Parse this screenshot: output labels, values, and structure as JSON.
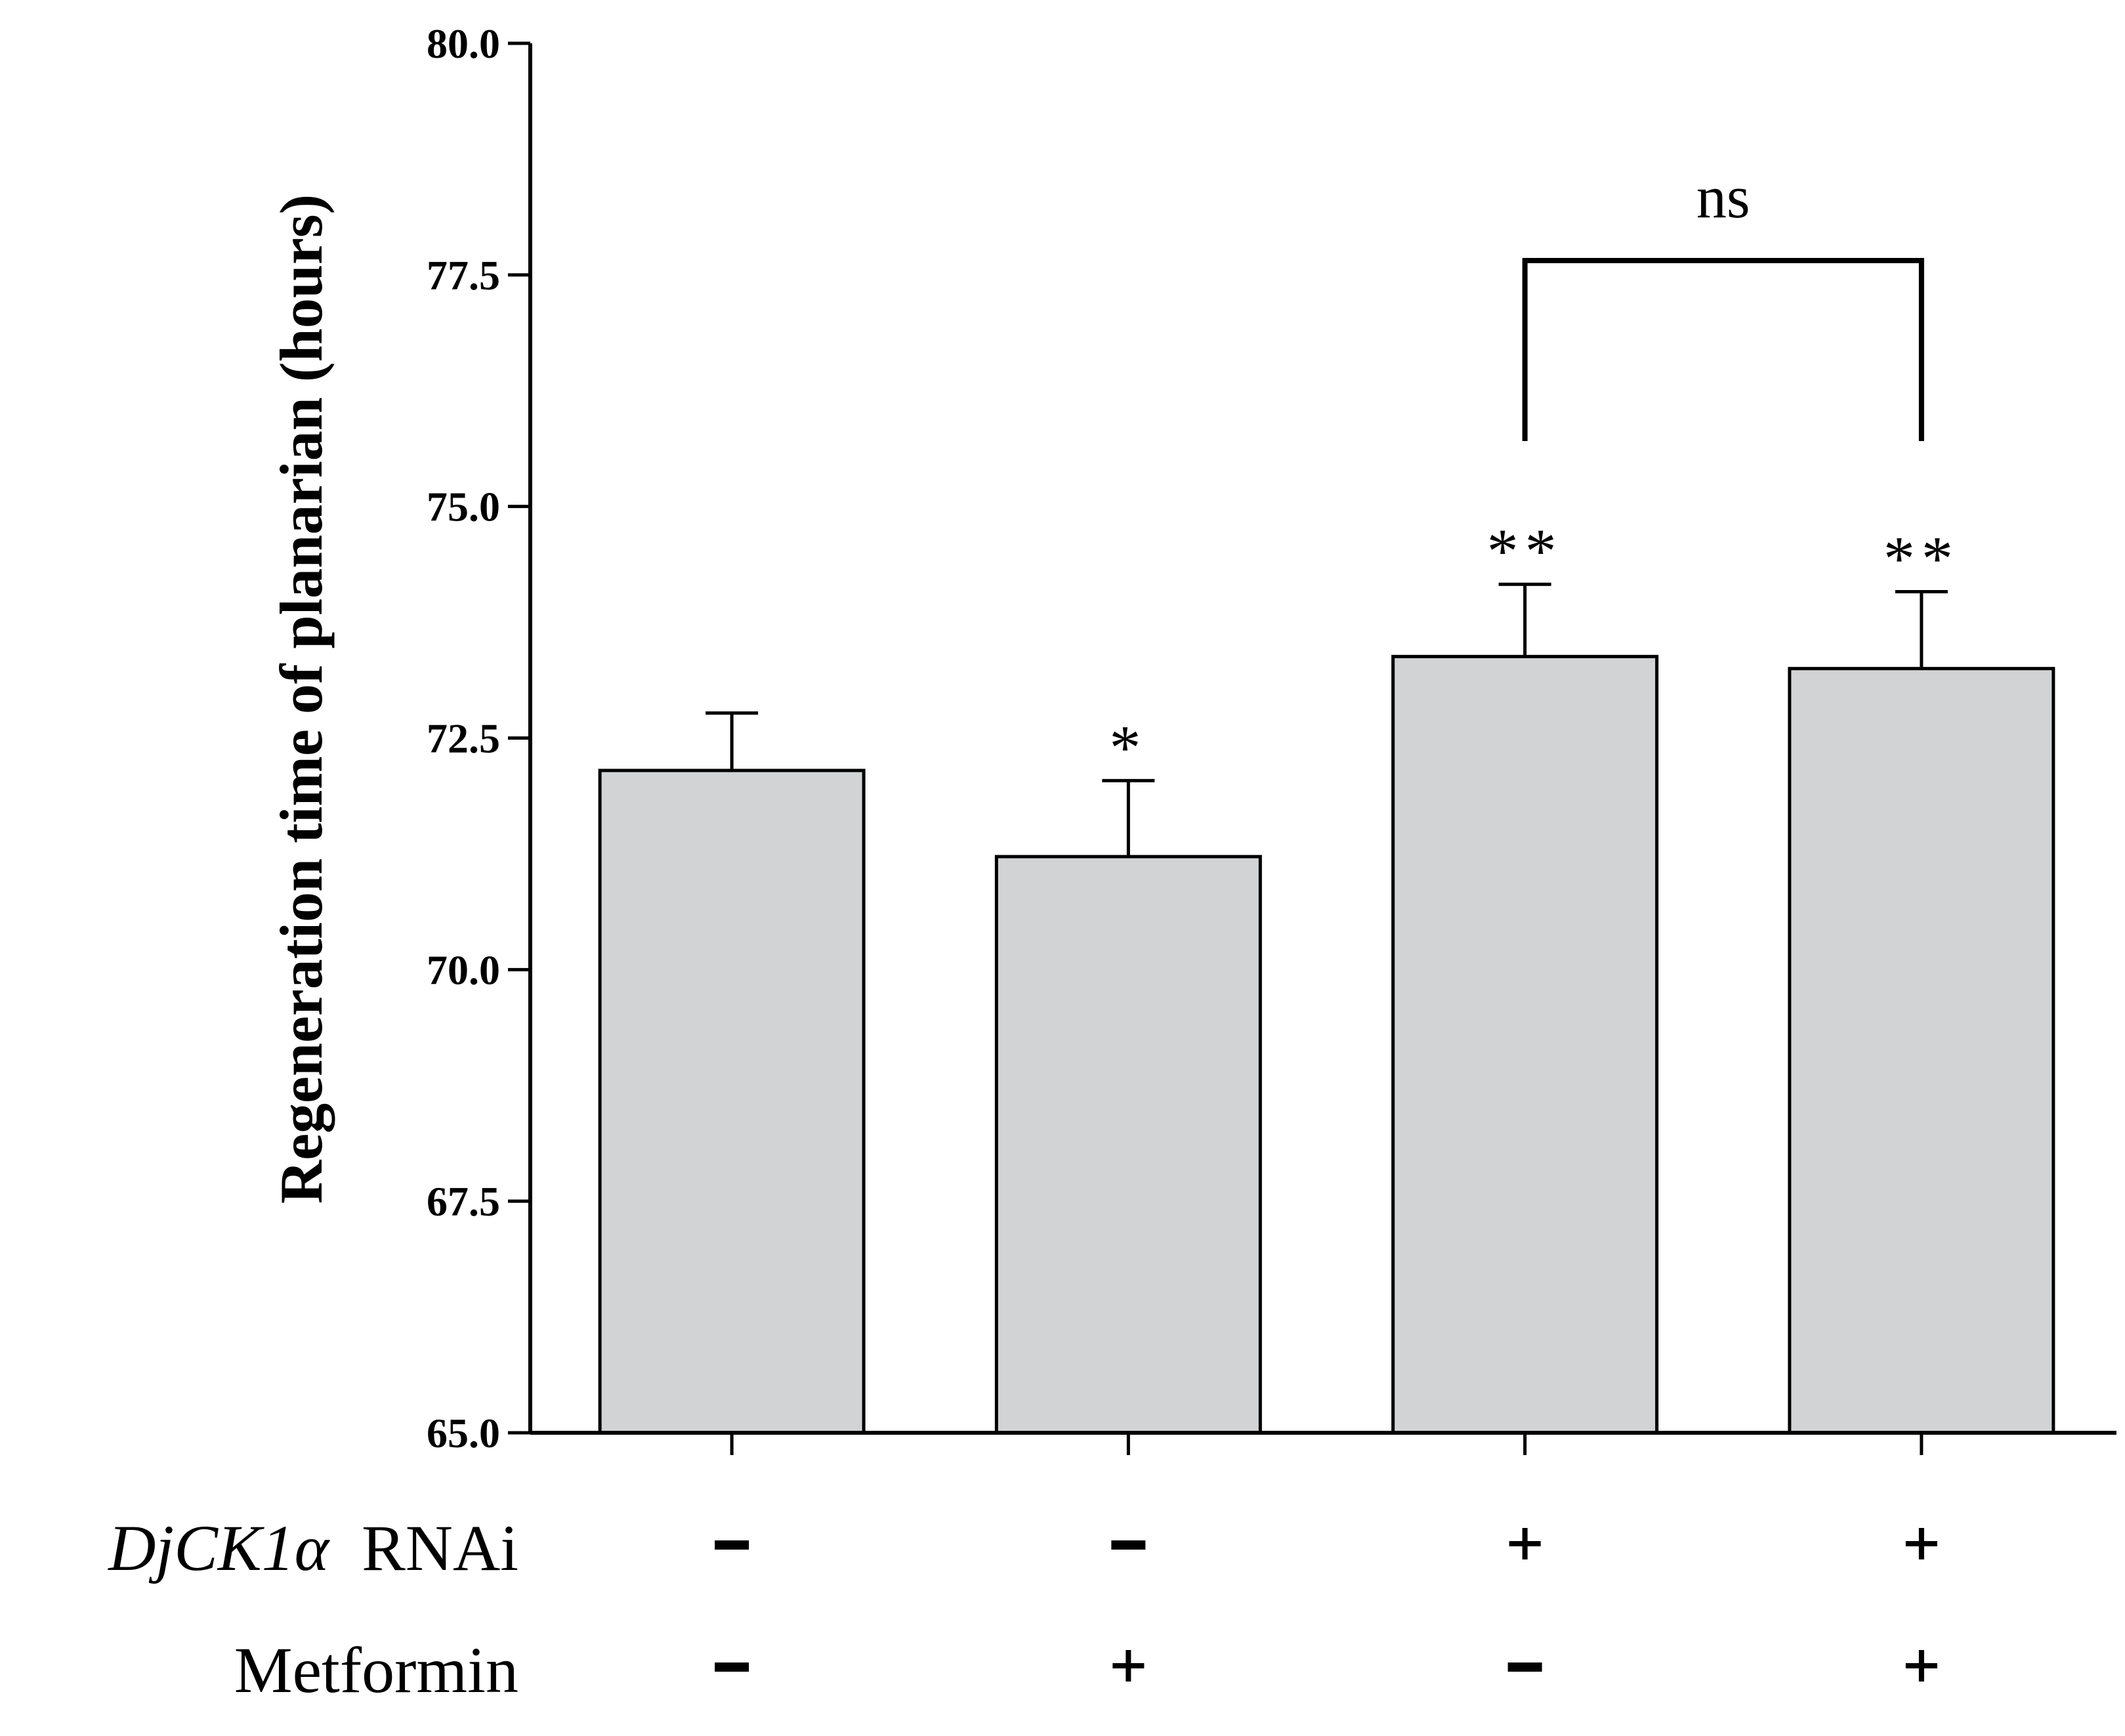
{
  "chart_data": {
    "type": "bar",
    "title": "",
    "xlabel": "",
    "ylabel": "Regeneration time of planarian (hours)",
    "ylim": [
      65.0,
      80.0
    ],
    "yticks": [
      "65.0",
      "67.5",
      "70.0",
      "72.5",
      "75.0",
      "77.5",
      "80.0"
    ],
    "bar_color": "#d1d3d4",
    "series": [
      {
        "name": "Regeneration time",
        "values": [
          72.15,
          71.22,
          73.38,
          73.25
        ],
        "errors": [
          0.62,
          0.82,
          0.78,
          0.83
        ],
        "significance": [
          "",
          "*",
          "**",
          "**"
        ]
      }
    ],
    "comparison": {
      "from": 2,
      "to": 3,
      "label": "ns"
    },
    "conditions": [
      {
        "name_italic": "DjCK1α",
        "name_plain": "RNAi",
        "signs": [
          "-",
          "-",
          "+",
          "+"
        ]
      },
      {
        "name_italic": "",
        "name_plain": "Metformin",
        "signs": [
          "-",
          "+",
          "-",
          "+"
        ]
      }
    ]
  }
}
